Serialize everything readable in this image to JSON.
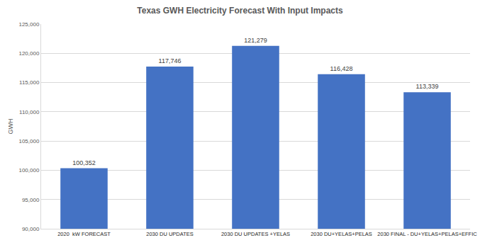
{
  "chart_data": {
    "type": "bar",
    "title": "Texas GWH Electricity Forecast With Input Impacts",
    "y_label": "GWH",
    "categories": [
      "2020  kW FORECAST",
      "2030 DU UPDATES",
      "2030 DU UPDATES +YELAS",
      "2030 DU+YELAS+PELAS",
      "2030 FINAL - DU+YELAS+PELAS+EFFIC"
    ],
    "values": [
      100352,
      117746,
      121279,
      116428,
      113339
    ],
    "value_labels": [
      "100,352",
      "117,746",
      "121,279",
      "116,428",
      "113,339"
    ],
    "color": "#4472c4",
    "data_labels": true,
    "grid": true,
    "ylim": [
      90000,
      125000
    ],
    "yticks": [
      {
        "value": 90000,
        "label": "90,000"
      },
      {
        "value": 95000,
        "label": "95,000"
      },
      {
        "value": 100000,
        "label": "100,000"
      },
      {
        "value": 105000,
        "label": "105,000"
      },
      {
        "value": 110000,
        "label": "110,000"
      },
      {
        "value": 115000,
        "label": "115,000"
      },
      {
        "value": 120000,
        "label": "120,000"
      },
      {
        "value": 125000,
        "label": "125,000"
      }
    ]
  }
}
